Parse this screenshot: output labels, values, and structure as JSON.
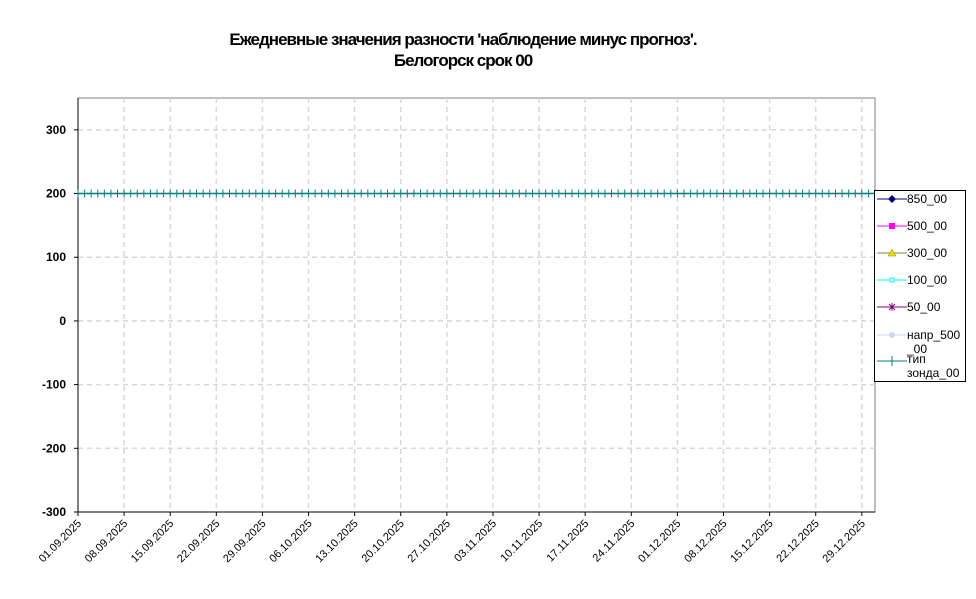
{
  "chart_data": {
    "type": "line",
    "title": [
      "Ежедневные значения разности 'наблюдение минус прогноз'.",
      "Белогорск    срок 00"
    ],
    "ylim": [
      -300,
      350
    ],
    "yticks": [
      -300,
      -200,
      -100,
      0,
      100,
      200,
      300
    ],
    "xlim": [
      "01.09.2025",
      "31.12.2025"
    ],
    "xticks": [
      "01.09.2025",
      "08.09.2025",
      "15.09.2025",
      "22.09.2025",
      "29.09.2025",
      "06.10.2025",
      "13.10.2025",
      "20.10.2025",
      "27.10.2025",
      "03.11.2025",
      "10.11.2025",
      "17.11.2025",
      "24.11.2025",
      "01.12.2025",
      "08.12.2025",
      "15.12.2025",
      "22.12.2025",
      "29.12.2025"
    ],
    "grid": true,
    "legend_position": "right",
    "series": [
      {
        "name": "850_00",
        "color": "#000080",
        "marker": "diamond",
        "values": []
      },
      {
        "name": "500_00",
        "color": "#FF00FF",
        "marker": "square",
        "values": []
      },
      {
        "name": "300_00",
        "color": "#6B8E23",
        "marker": "triangle",
        "values": []
      },
      {
        "name": "100_00",
        "color": "#00FFFF",
        "marker": "open-square",
        "values": []
      },
      {
        "name": "50_00",
        "color": "#800080",
        "marker": "asterisk",
        "values": []
      },
      {
        "name": "напр_500_00",
        "color": "#C8D8F0",
        "marker": "circle",
        "values": []
      },
      {
        "name": "тип зонда_00",
        "color": "#008080",
        "marker": "plus",
        "values": [
          200,
          200,
          200,
          200,
          200,
          200,
          200,
          200,
          200,
          200,
          200,
          200,
          200,
          200,
          200,
          200,
          200,
          200,
          200,
          200,
          200,
          200,
          200,
          200,
          200,
          200,
          200,
          200,
          200,
          200,
          200,
          200,
          200,
          200,
          200,
          200,
          200,
          200,
          200,
          200,
          200,
          200,
          200,
          200,
          200,
          200,
          200,
          200,
          200,
          200,
          200,
          200,
          200,
          200,
          200,
          200,
          200,
          200,
          200,
          200,
          200,
          200,
          200,
          200,
          200,
          200,
          200,
          200,
          200,
          200,
          200,
          200,
          200,
          200,
          200,
          200,
          200,
          200,
          200,
          200,
          200,
          200,
          200,
          200,
          200,
          200,
          200,
          200,
          200,
          200,
          200,
          200,
          200,
          200,
          200,
          200,
          200,
          200,
          200,
          200,
          200,
          200,
          200,
          200,
          200,
          200,
          200,
          200,
          200,
          200,
          200,
          200,
          200,
          200,
          200,
          200,
          200,
          200,
          200,
          200,
          200,
          200
        ]
      }
    ],
    "legend_labels": [
      "850_00",
      "500_00",
      "300_00",
      "100_00",
      "50_00",
      "напр_500\n_00",
      "тип\nзонда_00"
    ]
  }
}
